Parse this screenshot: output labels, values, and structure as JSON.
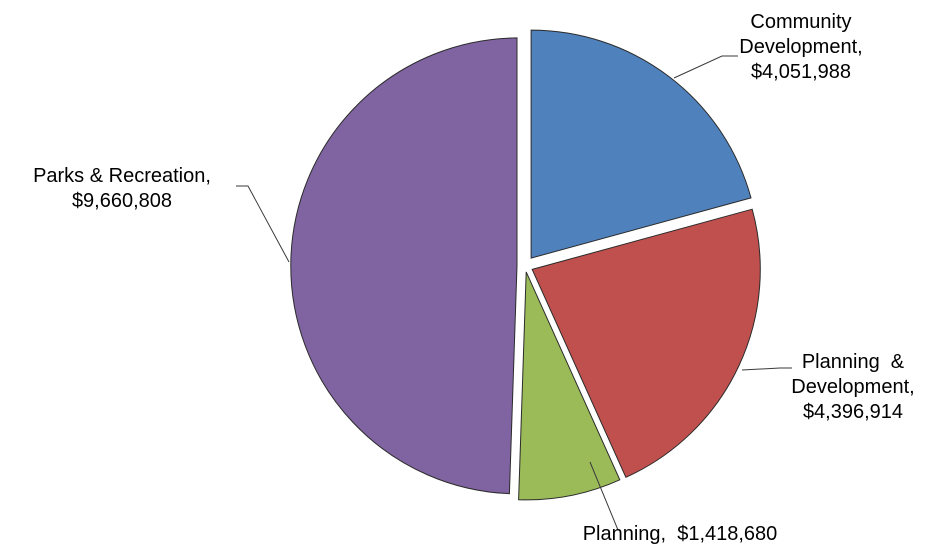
{
  "chart_data": {
    "type": "pie",
    "title": "",
    "slices": [
      {
        "category": "Community Development",
        "value": 4051988,
        "label_lines": [
          "Community",
          "Development,",
          "$4,051,988"
        ],
        "color": "#4F81BD"
      },
      {
        "category": "Planning & Development",
        "value": 4396914,
        "label_lines": [
          "Planning  &",
          "Development,",
          "$4,396,914"
        ],
        "color": "#C0504D"
      },
      {
        "category": "Planning",
        "value": 1418680,
        "label_lines": [
          "Planning,  $1,418,680"
        ],
        "color": "#9BBB59"
      },
      {
        "category": "Parks & Recreation",
        "value": 9660808,
        "label_lines": [
          "Parks & Recreation,",
          "$9,660,808"
        ],
        "color": "#8064A2"
      }
    ],
    "start_angle_deg": 0,
    "direction": "clockwise",
    "exploded": true,
    "legend": "none",
    "data_labels": "outside-with-leader-lines"
  }
}
